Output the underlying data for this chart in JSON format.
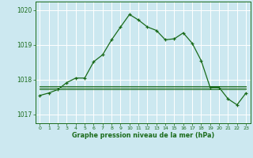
{
  "title": "Graphe pression niveau de la mer (hPa)",
  "background_color": "#cce8f0",
  "grid_color": "#ffffff",
  "line_color": "#1a6b1a",
  "xlim": [
    -0.5,
    23.5
  ],
  "ylim": [
    1016.75,
    1020.25
  ],
  "yticks": [
    1017,
    1018,
    1019,
    1020
  ],
  "xticks": [
    0,
    1,
    2,
    3,
    4,
    5,
    6,
    7,
    8,
    9,
    10,
    11,
    12,
    13,
    14,
    15,
    16,
    17,
    18,
    19,
    20,
    21,
    22,
    23
  ],
  "main_line": [
    [
      0,
      1017.55
    ],
    [
      1,
      1017.62
    ],
    [
      2,
      1017.72
    ],
    [
      3,
      1017.92
    ],
    [
      4,
      1018.05
    ],
    [
      5,
      1018.05
    ],
    [
      6,
      1018.52
    ],
    [
      7,
      1018.72
    ],
    [
      8,
      1019.15
    ],
    [
      9,
      1019.52
    ],
    [
      10,
      1019.88
    ],
    [
      11,
      1019.72
    ],
    [
      12,
      1019.52
    ],
    [
      13,
      1019.42
    ],
    [
      14,
      1019.15
    ],
    [
      15,
      1019.18
    ],
    [
      16,
      1019.35
    ],
    [
      17,
      1019.05
    ],
    [
      18,
      1018.55
    ],
    [
      19,
      1017.78
    ],
    [
      20,
      1017.78
    ],
    [
      21,
      1017.45
    ],
    [
      22,
      1017.28
    ],
    [
      23,
      1017.62
    ]
  ],
  "flat_line1": [
    [
      0,
      1017.72
    ],
    [
      23,
      1017.72
    ]
  ],
  "flat_line2": [
    [
      0,
      1017.78
    ],
    [
      23,
      1017.78
    ]
  ],
  "flat_line3": [
    [
      0,
      1017.82
    ],
    [
      23,
      1017.82
    ]
  ]
}
